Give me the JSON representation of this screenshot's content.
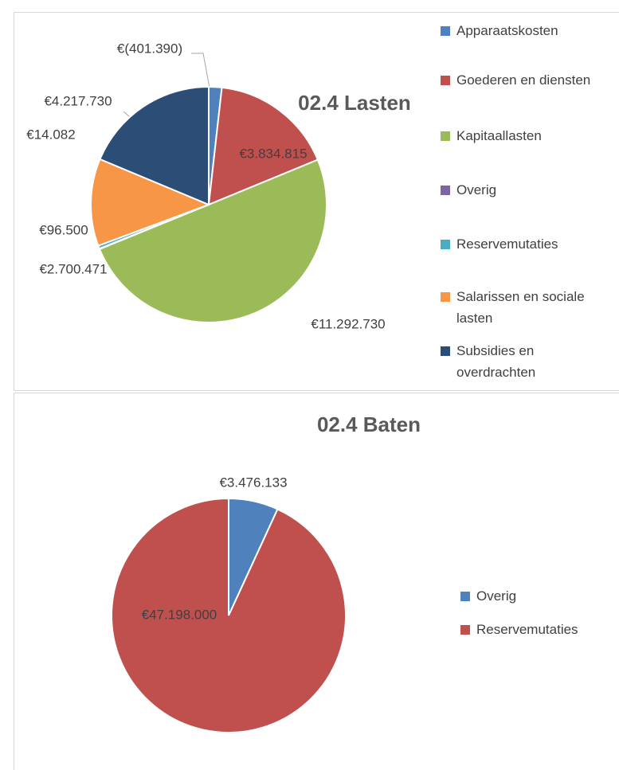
{
  "chart_data": [
    {
      "type": "pie",
      "title": "02.4 Lasten",
      "categories": [
        "Apparaatskosten",
        "Goederen en diensten",
        "Kapitaallasten",
        "Overig",
        "Reservemutaties",
        "Salarissen en sociale lasten",
        "Subsidies en overdrachten"
      ],
      "values": [
        -401390,
        3834815,
        11292730,
        14082,
        96500,
        2700471,
        4217730
      ],
      "value_labels": [
        "€(401.390)",
        "€3.834.815",
        "€11.292.730",
        "€14.082",
        "€96.500",
        "€2.700.471",
        "€4.217.730"
      ],
      "colors": [
        "#4f81bd",
        "#c0504d",
        "#9bbb59",
        "#8064a2",
        "#4bacc6",
        "#f79646",
        "#2c4d75"
      ]
    },
    {
      "type": "pie",
      "title": "02.4 Baten",
      "categories": [
        "Overig",
        "Reservemutaties"
      ],
      "values": [
        3476133,
        47198000
      ],
      "value_labels": [
        "€3.476.133",
        "€47.198.000"
      ],
      "colors": [
        "#4f81bd",
        "#c0504d"
      ]
    }
  ]
}
